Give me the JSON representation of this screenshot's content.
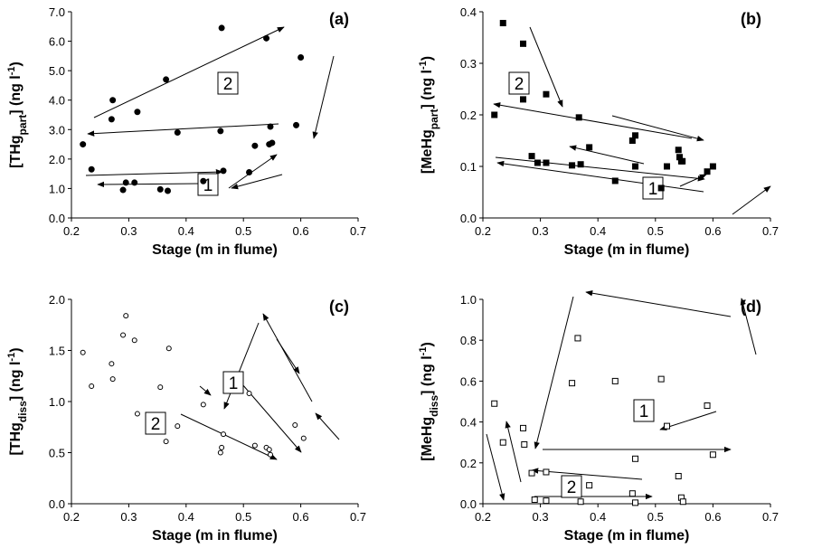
{
  "chart_data": [
    {
      "type": "scatter",
      "title": "(a)",
      "marker": "filled-circle",
      "color": "#000000",
      "xlabel": "Stage (m in flume)",
      "ylabel": [
        "[THg",
        "part",
        "] (ng l",
        "-1",
        ")"
      ],
      "xlim": [
        0.2,
        0.7
      ],
      "xticks": [
        0.2,
        0.3,
        0.4,
        0.5,
        0.6,
        0.7
      ],
      "ylim": [
        0,
        7
      ],
      "yticks": [
        {
          "value": 0,
          "label": "0.0"
        },
        {
          "value": 1,
          "label": "1.0"
        },
        {
          "value": 2,
          "label": "2.0"
        },
        {
          "value": 3,
          "label": "3.0"
        },
        {
          "value": 4,
          "label": "4.0"
        },
        {
          "value": 5,
          "label": "5.0"
        },
        {
          "value": 6,
          "label": "6.0"
        },
        {
          "value": 7,
          "label": "7.0"
        }
      ],
      "annotations": [
        "2",
        "1"
      ],
      "x": [
        0.22,
        0.235,
        0.27,
        0.272,
        0.29,
        0.295,
        0.31,
        0.315,
        0.355,
        0.365,
        0.368,
        0.385,
        0.43,
        0.46,
        0.462,
        0.465,
        0.51,
        0.52,
        0.54,
        0.545,
        0.547,
        0.55,
        0.592,
        0.6
      ],
      "values": [
        2.5,
        1.65,
        3.35,
        4.0,
        0.95,
        1.2,
        1.2,
        3.6,
        0.97,
        4.7,
        0.92,
        2.9,
        1.25,
        2.95,
        6.45,
        1.6,
        1.55,
        2.45,
        6.1,
        2.5,
        3.1,
        2.55,
        3.15,
        5.45
      ]
    },
    {
      "type": "scatter",
      "title": "(b)",
      "marker": "filled-square",
      "color": "#000000",
      "xlabel": "Stage (m in flume)",
      "ylabel": [
        "[MeHg",
        "part",
        "] (ng l",
        "-1",
        ")"
      ],
      "xlim": [
        0.2,
        0.7
      ],
      "xticks": [
        0.2,
        0.3,
        0.4,
        0.5,
        0.6,
        0.7
      ],
      "ylim": [
        0,
        0.4
      ],
      "yticks": [
        {
          "value": 0,
          "label": "0.0"
        },
        0.1,
        0.2,
        0.3,
        0.4
      ],
      "annotations": [
        "2",
        "1"
      ],
      "x": [
        0.22,
        0.235,
        0.27,
        0.27,
        0.285,
        0.295,
        0.31,
        0.31,
        0.355,
        0.367,
        0.37,
        0.385,
        0.43,
        0.46,
        0.465,
        0.465,
        0.51,
        0.52,
        0.54,
        0.542,
        0.545,
        0.547,
        0.59,
        0.6
      ],
      "values": [
        0.2,
        0.378,
        0.338,
        0.23,
        0.12,
        0.107,
        0.24,
        0.107,
        0.102,
        0.195,
        0.104,
        0.137,
        0.072,
        0.15,
        0.16,
        0.1,
        0.058,
        0.1,
        0.132,
        0.118,
        0.11,
        0.11,
        0.09,
        0.1
      ]
    },
    {
      "type": "scatter",
      "title": "(c)",
      "marker": "open-circle",
      "color": "#000000",
      "xlabel": "Stage (m in flume)",
      "ylabel": [
        "[THg",
        "diss",
        "] (ng l",
        "-1",
        ")"
      ],
      "xlim": [
        0.2,
        0.7
      ],
      "xticks": [
        0.2,
        0.3,
        0.4,
        0.5,
        0.6,
        0.7
      ],
      "ylim": [
        0,
        2
      ],
      "yticks": [
        {
          "value": 0,
          "label": "0.0"
        },
        0.5,
        {
          "value": 1,
          "label": "1.0"
        },
        1.5,
        {
          "value": 2,
          "label": "2.0"
        }
      ],
      "annotations": [
        "1",
        "2"
      ],
      "x": [
        0.22,
        0.235,
        0.27,
        0.272,
        0.29,
        0.295,
        0.31,
        0.315,
        0.355,
        0.365,
        0.37,
        0.385,
        0.43,
        0.46,
        0.462,
        0.465,
        0.51,
        0.52,
        0.54,
        0.545,
        0.547,
        0.59,
        0.605
      ],
      "values": [
        1.48,
        1.15,
        1.37,
        1.22,
        1.65,
        1.84,
        1.6,
        0.88,
        1.14,
        0.61,
        1.52,
        0.76,
        0.97,
        0.5,
        0.55,
        0.68,
        1.08,
        0.57,
        0.55,
        0.53,
        0.48,
        0.77,
        0.64
      ]
    },
    {
      "type": "scatter",
      "title": "(d)",
      "marker": "open-square",
      "color": "#000000",
      "xlabel": "Stage (m in flume)",
      "ylabel": [
        "[MeHg",
        "diss",
        "] (ng l",
        "-1",
        ")"
      ],
      "xlim": [
        0.2,
        0.7
      ],
      "xticks": [
        0.2,
        0.3,
        0.4,
        0.5,
        0.6,
        0.7
      ],
      "ylim": [
        0,
        1
      ],
      "yticks": [
        {
          "value": 0,
          "label": "0.0"
        },
        0.2,
        0.4,
        0.6,
        0.8,
        {
          "value": 1,
          "label": "1.0"
        }
      ],
      "annotations": [
        "1",
        "2"
      ],
      "x": [
        0.22,
        0.235,
        0.27,
        0.272,
        0.285,
        0.29,
        0.31,
        0.31,
        0.355,
        0.365,
        0.37,
        0.385,
        0.43,
        0.46,
        0.465,
        0.465,
        0.51,
        0.52,
        0.54,
        0.545,
        0.548,
        0.59,
        0.6
      ],
      "values": [
        0.49,
        0.3,
        0.37,
        0.29,
        0.15,
        0.02,
        0.155,
        0.015,
        0.59,
        0.81,
        0.01,
        0.09,
        0.6,
        0.05,
        0.22,
        0.005,
        0.61,
        0.38,
        0.135,
        0.03,
        0.01,
        0.48,
        0.24
      ]
    }
  ]
}
